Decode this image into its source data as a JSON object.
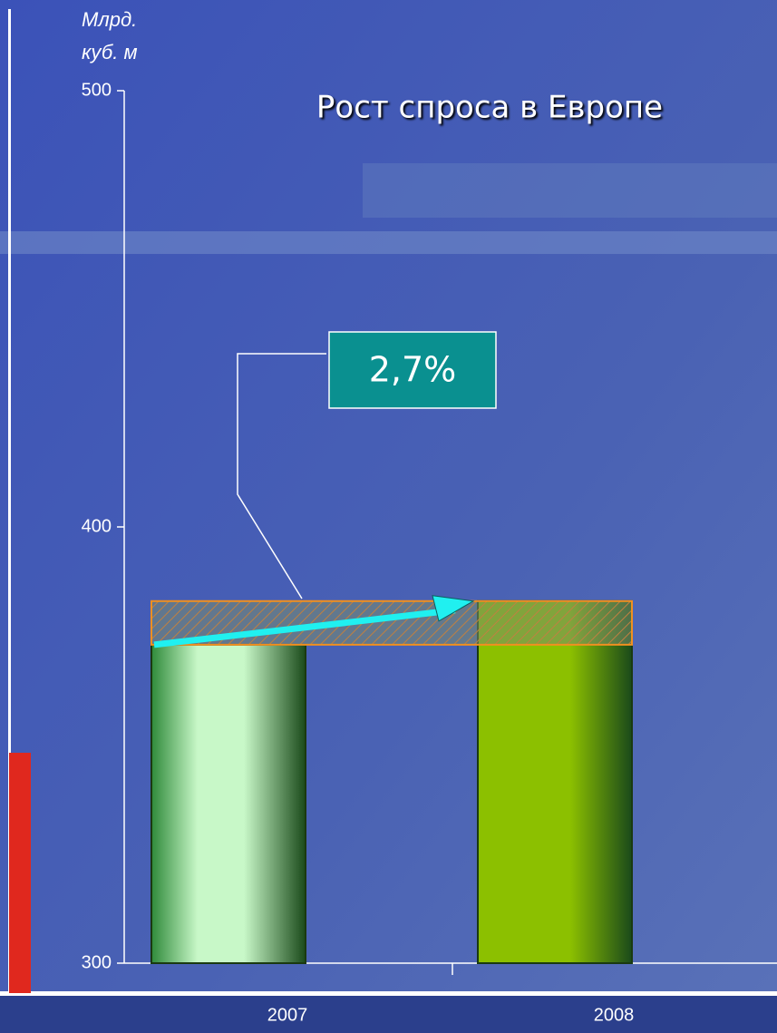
{
  "chart_data": {
    "type": "bar",
    "title": "Рост спроса в Европе",
    "y_label": "Млрд. куб. м",
    "categories": [
      "2007",
      "2008"
    ],
    "values": [
      373,
      383
    ],
    "colors": [
      "#2f8a3a",
      "#8cc000"
    ],
    "annotation": "2,7%",
    "ylim": [
      300,
      500
    ],
    "yticks": [
      300,
      400,
      500
    ]
  }
}
